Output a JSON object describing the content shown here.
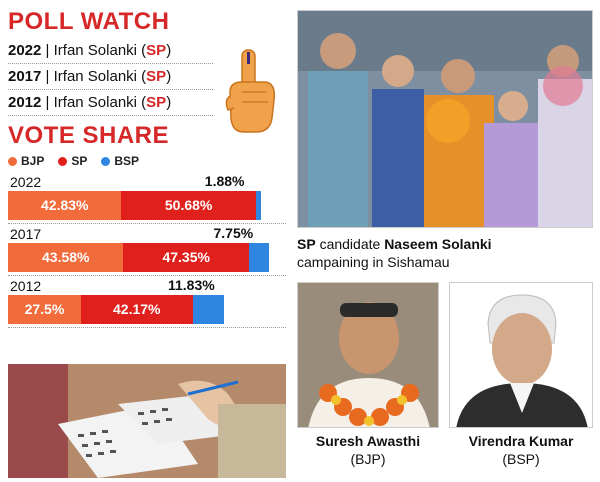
{
  "poll_watch": {
    "title": "POLL WATCH",
    "rows": [
      {
        "year": "2022",
        "sep": " | ",
        "name": "Irfan Solanki",
        "party_open": " (",
        "party": "SP",
        "party_close": ")"
      },
      {
        "year": "2017",
        "sep": " | ",
        "name": "Irfan Solanki",
        "party_open": " (",
        "party": "SP",
        "party_close": ")"
      },
      {
        "year": "2012",
        "sep": " | ",
        "name": "Irfan Solanki",
        "party_open": " (",
        "party": "SP",
        "party_close": ")"
      }
    ]
  },
  "vote_share": {
    "title": "VOTE SHARE",
    "legend": [
      {
        "label": "BJP",
        "color": "#f26b3a"
      },
      {
        "label": "SP",
        "color": "#e0201c"
      },
      {
        "label": "BSP",
        "color": "#2f86e0"
      }
    ]
  },
  "chart_data": {
    "type": "bar",
    "title": "VOTE SHARE",
    "categories": [
      "2022",
      "2017",
      "2012"
    ],
    "series": [
      {
        "name": "BJP",
        "color": "#f26b3a",
        "values": [
          42.83,
          43.58,
          27.5
        ],
        "labels": [
          "42.83%",
          "43.58%",
          "27.5%"
        ]
      },
      {
        "name": "SP",
        "color": "#e0201c",
        "values": [
          50.68,
          47.35,
          42.17
        ],
        "labels": [
          "50.68%",
          "47.35%",
          "42.17%"
        ]
      },
      {
        "name": "BSP",
        "color": "#2f86e0",
        "values": [
          1.88,
          7.75,
          11.83
        ],
        "labels": [
          "1.88%",
          "7.75%",
          "11.83%"
        ]
      }
    ]
  },
  "captions": {
    "main_photo": {
      "party": "SP",
      "pre": " candidate ",
      "name": "Naseem Solanki",
      "post": "campaining in Sishamau"
    },
    "candidate_1": {
      "name": "Suresh Awasthi",
      "party": "(BJP)"
    },
    "candidate_2": {
      "name": "Virendra Kumar",
      "party": "(BSP)"
    }
  },
  "icons": [
    "inked-finger-icon"
  ]
}
